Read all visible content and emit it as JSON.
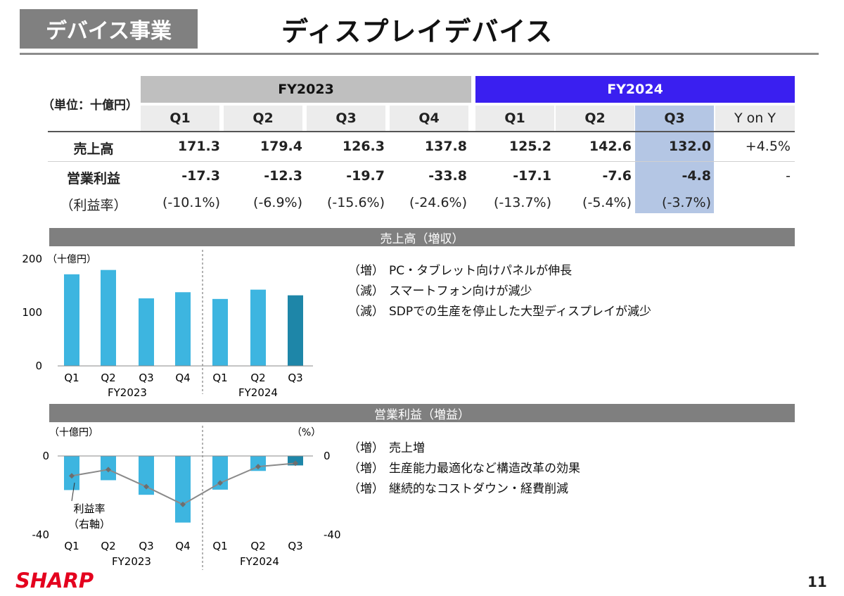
{
  "header": {
    "segment": "デバイス事業",
    "title": "ディスプレイデバイス"
  },
  "table": {
    "unit_label": "（単位：十億円）",
    "fy2023_label": "FY2023",
    "fy2024_label": "FY2024",
    "columns": [
      "Q1",
      "Q2",
      "Q3",
      "Q4",
      "Q1",
      "Q2",
      "Q3",
      "Y on Y"
    ],
    "rows": [
      {
        "label": "売上高",
        "values": [
          "171.3",
          "179.4",
          "126.3",
          "137.8",
          "125.2",
          "142.6",
          "132.0",
          "+4.5%"
        ]
      },
      {
        "label": "営業利益",
        "values": [
          "-17.3",
          "-12.3",
          "-19.7",
          "-33.8",
          "-17.1",
          "-7.6",
          "-4.8",
          "-"
        ]
      },
      {
        "label": "（利益率）",
        "values": [
          "(-10.1%)",
          "(-6.9%)",
          "(-15.6%)",
          "(-24.6%)",
          "(-13.7%)",
          "(-5.4%)",
          "(-3.7%)",
          ""
        ]
      }
    ]
  },
  "sales_section": {
    "band_title": "売上高（増収）",
    "notes": [
      {
        "mark": "（増）",
        "text": "PC・タブレット向けパネルが伸長"
      },
      {
        "mark": "（減）",
        "text": "スマートフォン向けが減少"
      },
      {
        "mark": "（減）",
        "text": "SDPでの生産を停止した大型ディスプレイが減少"
      }
    ]
  },
  "profit_section": {
    "band_title": "営業利益（増益）",
    "notes": [
      {
        "mark": "（増）",
        "text": "売上増"
      },
      {
        "mark": "（増）",
        "text": "生産能力最適化など構造改革の効果"
      },
      {
        "mark": "（増）",
        "text": "継続的なコストダウン・経費削減"
      }
    ]
  },
  "chart_data": [
    {
      "type": "bar",
      "title": "売上高（増収）",
      "ylabel": "（十億円）",
      "categories": [
        "Q1",
        "Q2",
        "Q3",
        "Q4",
        "Q1",
        "Q2",
        "Q3"
      ],
      "groups": [
        "FY2023",
        "FY2024"
      ],
      "values": [
        171.3,
        179.4,
        126.3,
        137.8,
        125.2,
        142.6,
        132.0
      ],
      "ylim": [
        0,
        200
      ],
      "yticks": [
        "200",
        "100",
        "0"
      ],
      "colors": {
        "bar": "#3db5e0",
        "highlight": "#1e86a8"
      }
    },
    {
      "type": "bar",
      "title": "営業利益（増益）",
      "ylabel": "（十億円）",
      "y2label": "（%）",
      "categories": [
        "Q1",
        "Q2",
        "Q3",
        "Q4",
        "Q1",
        "Q2",
        "Q3"
      ],
      "groups": [
        "FY2023",
        "FY2024"
      ],
      "series": [
        {
          "values": [
            -17.3,
            -12.3,
            -19.7,
            -33.8,
            -17.1,
            -7.6,
            -4.8
          ]
        },
        {
          "name": "利益率（右軸）",
          "values": [
            -10.1,
            -6.9,
            -15.6,
            -24.6,
            -13.7,
            -5.4,
            -3.7
          ]
        }
      ],
      "ylim": [
        -40,
        0
      ],
      "y2lim": [
        -40,
        0
      ],
      "yticks": [
        "0",
        "-40"
      ],
      "y2ticks": [
        "0",
        "-40"
      ],
      "annotation": [
        "利益率",
        "（右軸）"
      ],
      "colors": {
        "bar": "#3db5e0",
        "highlight": "#1e86a8",
        "line": "#8a8a8a"
      }
    }
  ],
  "footer": {
    "logo": "SHARP",
    "page_number": "11"
  }
}
